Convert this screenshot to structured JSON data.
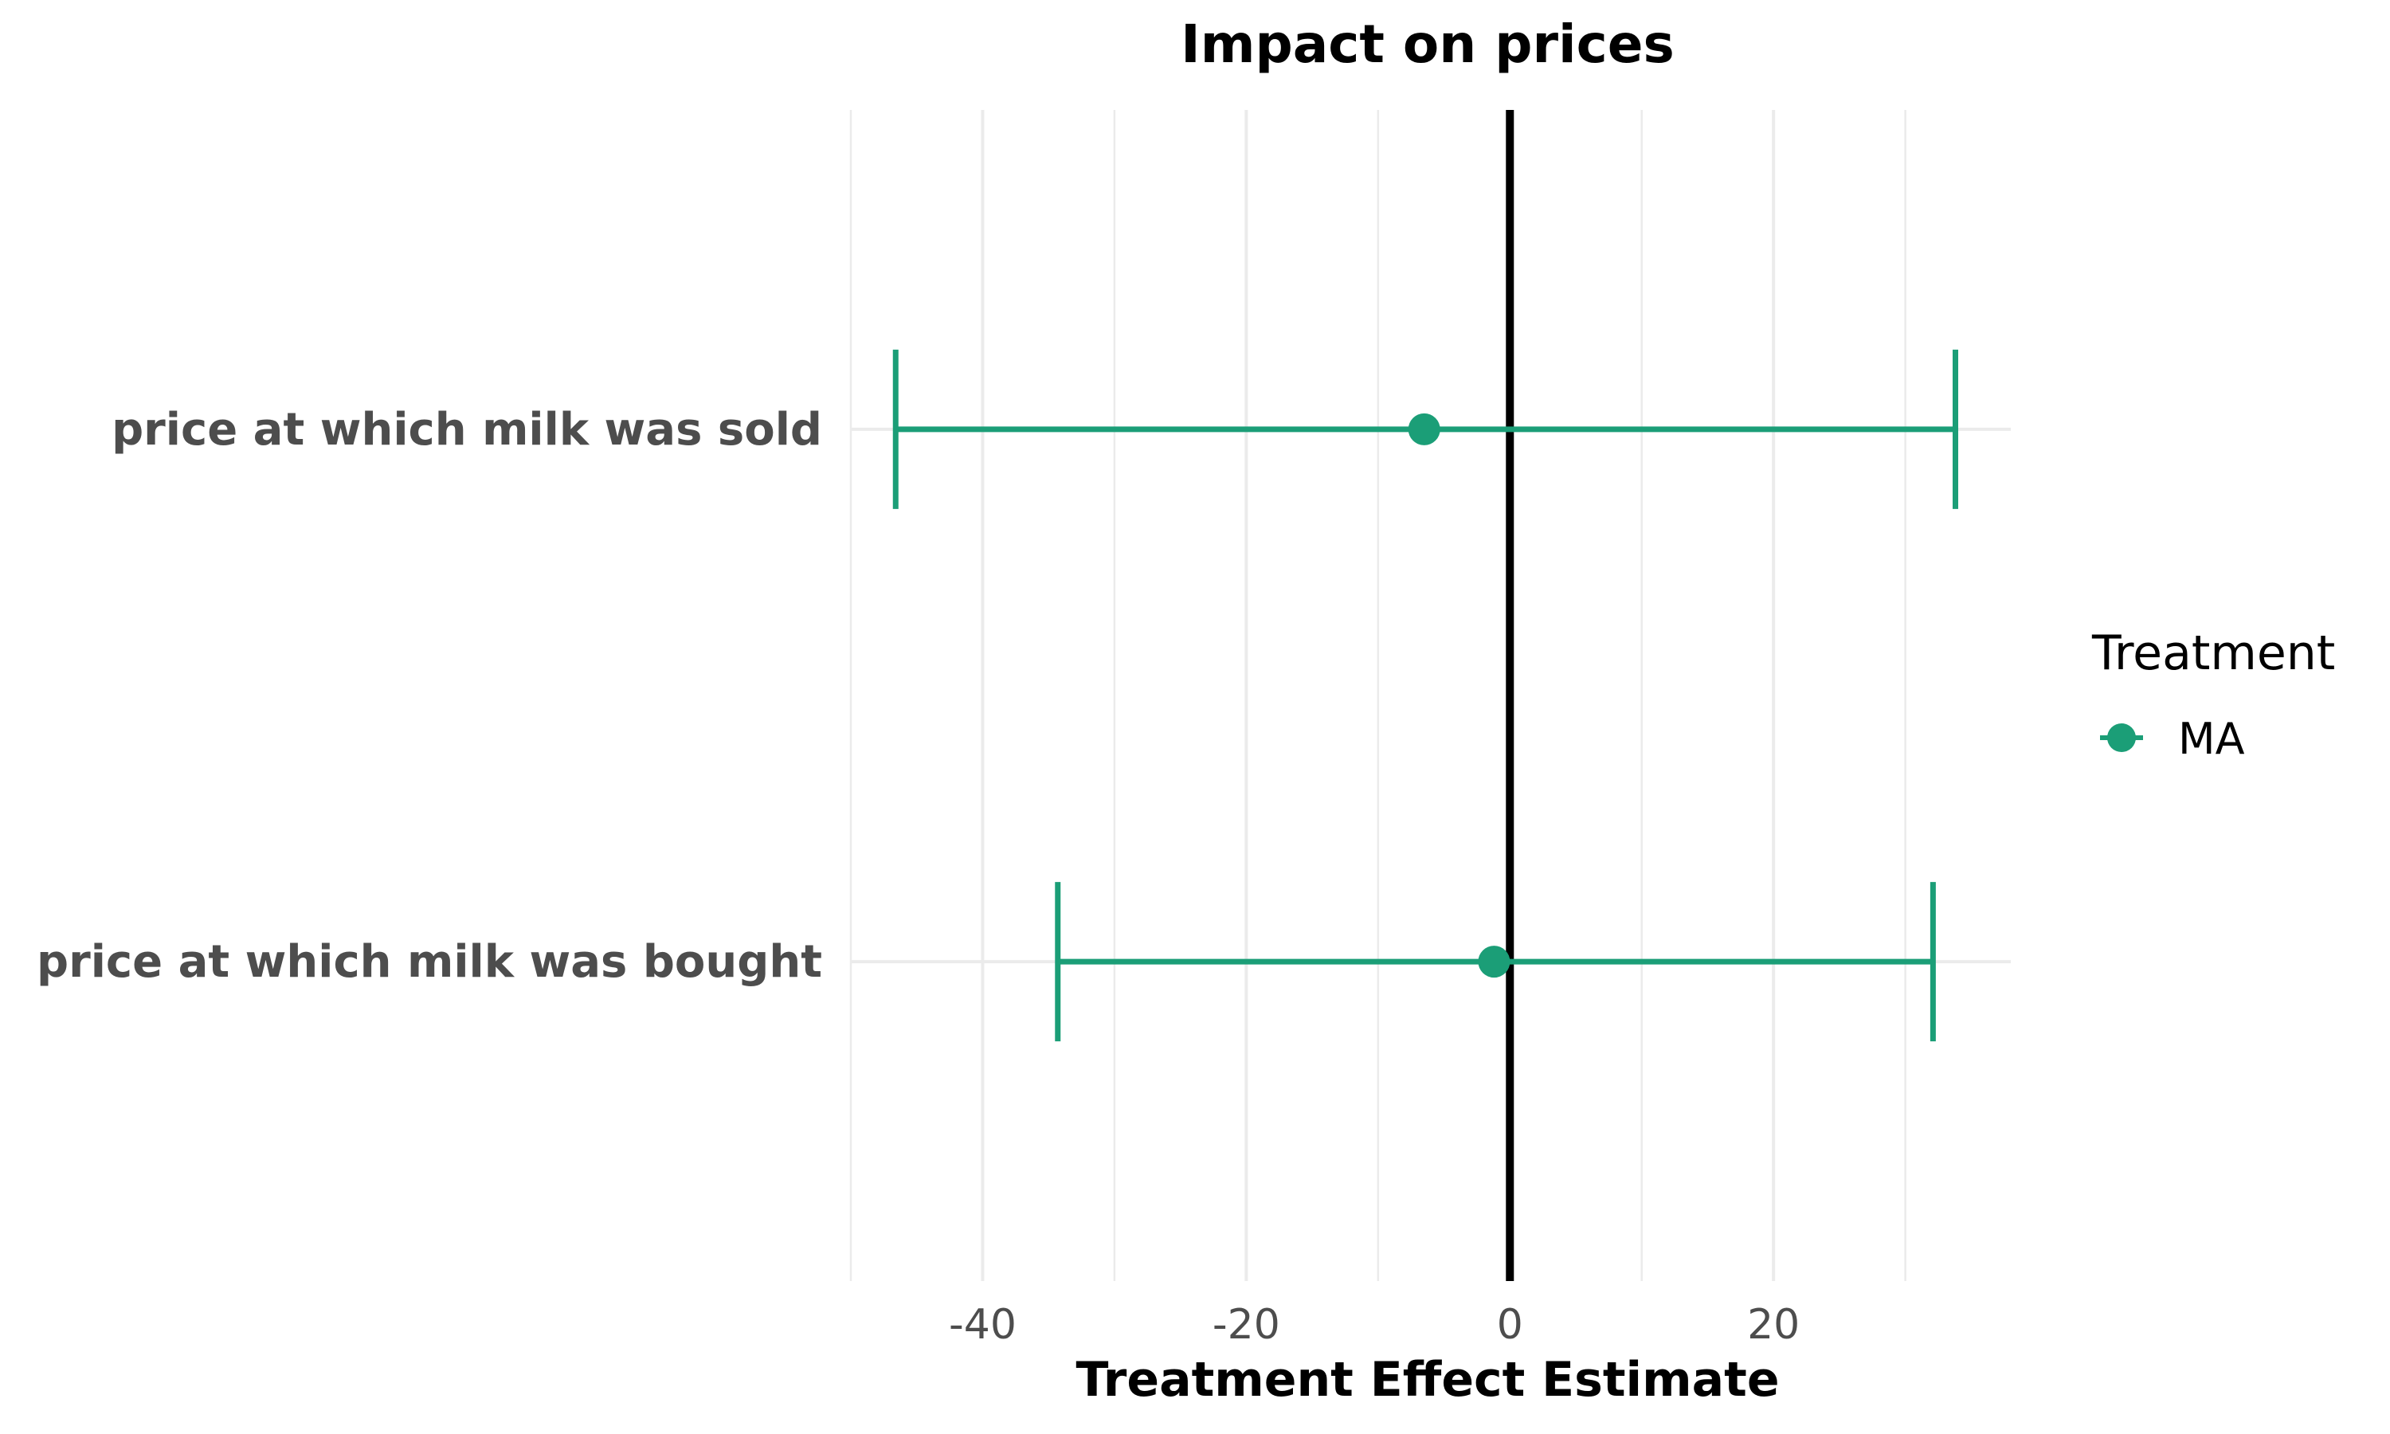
{
  "chart_data": {
    "type": "forest",
    "title": "Impact on prices",
    "xlabel": "Treatment Effect Estimate",
    "ylabel": "",
    "xlim": [
      -50,
      38
    ],
    "xticks": [
      -40,
      -20,
      0,
      20
    ],
    "xtick_labels": [
      "-40",
      "-20",
      "0",
      "20"
    ],
    "reference_line_x": 0,
    "grid": true,
    "legend": {
      "title": "Treatment",
      "placement": "right",
      "entries": [
        {
          "label": "MA",
          "color": "#1b9e77"
        }
      ]
    },
    "categories": [
      "price at which milk was sold",
      "price at which milk was bought"
    ],
    "series": [
      {
        "name": "MA",
        "color": "#1b9e77",
        "points": [
          {
            "category": "price at which milk was sold",
            "estimate": -6.5,
            "ci_low": -46.6,
            "ci_high": 33.8
          },
          {
            "category": "price at which milk was bought",
            "estimate": -1.2,
            "ci_low": -34.3,
            "ci_high": 32.1
          }
        ]
      }
    ]
  }
}
